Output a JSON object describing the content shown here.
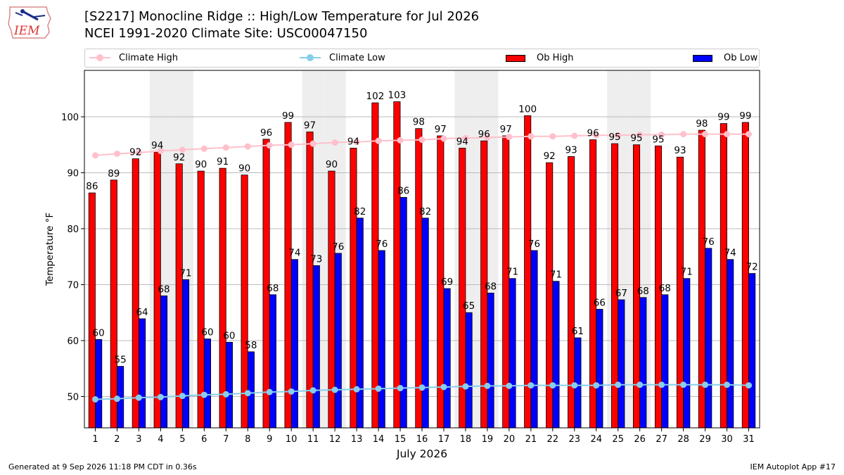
{
  "header": {
    "title": "[S2217] Monocline Ridge :: High/Low Temperature for Jul 2026",
    "subtitle": "NCEI 1991-2020 Climate Site: USC00047150"
  },
  "logo": {
    "text": "IEM"
  },
  "legend": {
    "climate_high": "Climate High",
    "climate_low": "Climate Low",
    "ob_high": "Ob High",
    "ob_low": "Ob Low"
  },
  "footer": {
    "generated": "Generated at 9 Sep 2026 11:18 PM CDT in 0.36s",
    "app": "IEM Autoplot App #17"
  },
  "colors": {
    "ob_high": "#ff0000",
    "ob_low": "#0000ff",
    "climate_high": "#ffc0cb",
    "climate_low": "#87ceeb",
    "weekend_shade": "#eeeeee",
    "grid": "#bbbbbb"
  },
  "chart_data": {
    "type": "bar",
    "xlabel": "July 2026",
    "ylabel": "Temperature °F",
    "ylim": [
      44.4,
      108.3
    ],
    "yticks": [
      50,
      60,
      70,
      80,
      90,
      100
    ],
    "grid": "horizontal",
    "legend_position": "top",
    "categories": [
      "1",
      "2",
      "3",
      "4",
      "5",
      "6",
      "7",
      "8",
      "9",
      "10",
      "11",
      "12",
      "13",
      "14",
      "15",
      "16",
      "17",
      "18",
      "19",
      "20",
      "21",
      "22",
      "23",
      "24",
      "25",
      "26",
      "27",
      "28",
      "29",
      "30",
      "31"
    ],
    "shaded_days": [
      4,
      5,
      11,
      12,
      18,
      19,
      25,
      26
    ],
    "series": [
      {
        "name": "Ob High",
        "kind": "bar",
        "values": [
          86.4,
          88.7,
          92.5,
          93.7,
          91.6,
          90.3,
          90.8,
          89.6,
          96.0,
          99.0,
          97.3,
          90.3,
          94.4,
          102.5,
          102.7,
          97.9,
          96.6,
          94.4,
          95.7,
          96.6,
          100.2,
          91.8,
          92.9,
          95.9,
          95.2,
          95.0,
          94.8,
          92.8,
          97.6,
          98.8,
          99.0
        ],
        "labels": [
          "86",
          "89",
          "92",
          "94",
          "92",
          "90",
          "91",
          "90",
          "96",
          "99",
          "97",
          "90",
          "94",
          "102",
          "103",
          "98",
          "97",
          "94",
          "96",
          "97",
          "100",
          "92",
          "93",
          "96",
          "95",
          "95",
          "95",
          "93",
          "98",
          "99",
          "99"
        ]
      },
      {
        "name": "Ob Low",
        "kind": "bar",
        "values": [
          60.2,
          55.4,
          63.9,
          68.0,
          70.9,
          60.3,
          59.7,
          58.0,
          68.2,
          74.5,
          73.4,
          75.6,
          81.9,
          76.1,
          85.6,
          81.9,
          69.3,
          65.0,
          68.5,
          71.1,
          76.1,
          70.6,
          60.5,
          65.6,
          67.3,
          67.7,
          68.2,
          71.1,
          76.5,
          74.5,
          72.0
        ],
        "labels": [
          "60",
          "55",
          "64",
          "68",
          "71",
          "60",
          "60",
          "58",
          "68",
          "74",
          "73",
          "76",
          "82",
          "76",
          "86",
          "82",
          "69",
          "65",
          "68",
          "71",
          "76",
          "71",
          "61",
          "66",
          "67",
          "68",
          "68",
          "71",
          "76",
          "74",
          "72"
        ]
      },
      {
        "name": "Climate High",
        "kind": "line",
        "values": [
          93.1,
          93.4,
          93.6,
          93.9,
          94.1,
          94.3,
          94.5,
          94.7,
          94.9,
          95.0,
          95.2,
          95.4,
          95.5,
          95.7,
          95.8,
          95.9,
          96.1,
          96.2,
          96.3,
          96.4,
          96.5,
          96.5,
          96.6,
          96.7,
          96.7,
          96.8,
          96.8,
          96.9,
          96.9,
          96.9,
          96.9
        ]
      },
      {
        "name": "Climate Low",
        "kind": "line",
        "values": [
          49.5,
          49.6,
          49.8,
          49.9,
          50.1,
          50.3,
          50.4,
          50.6,
          50.8,
          50.9,
          51.1,
          51.2,
          51.3,
          51.4,
          51.5,
          51.6,
          51.7,
          51.8,
          51.9,
          51.9,
          52.0,
          52.0,
          52.0,
          52.0,
          52.1,
          52.1,
          52.1,
          52.1,
          52.1,
          52.1,
          52.0
        ]
      }
    ]
  }
}
